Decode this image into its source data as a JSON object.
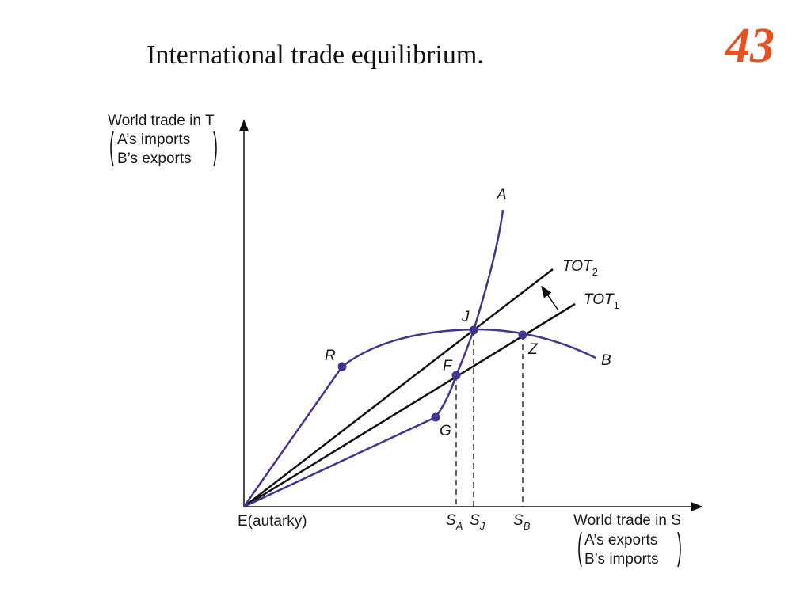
{
  "header": {
    "title": "International trade equilibrium.",
    "page_number": "43"
  },
  "y_axis": {
    "label": "World trade in T",
    "lines": [
      "A’s imports",
      "B’s exports"
    ]
  },
  "x_axis": {
    "label": "World trade in S",
    "lines": [
      "A’s exports",
      "B’s imports"
    ]
  },
  "origin": "E(autarky)",
  "curves": {
    "a": "A",
    "b": "B"
  },
  "lines": [
    {
      "text": "TOT",
      "sub": "2"
    },
    {
      "text": "TOT",
      "sub": "1"
    }
  ],
  "points": {
    "j": "J",
    "r": "R",
    "f": "F",
    "g": "G",
    "z": "Z"
  },
  "ticks": [
    {
      "text": "S",
      "sub": "A"
    },
    {
      "text": "S",
      "sub": "J"
    },
    {
      "text": "S",
      "sub": "B"
    }
  ]
}
